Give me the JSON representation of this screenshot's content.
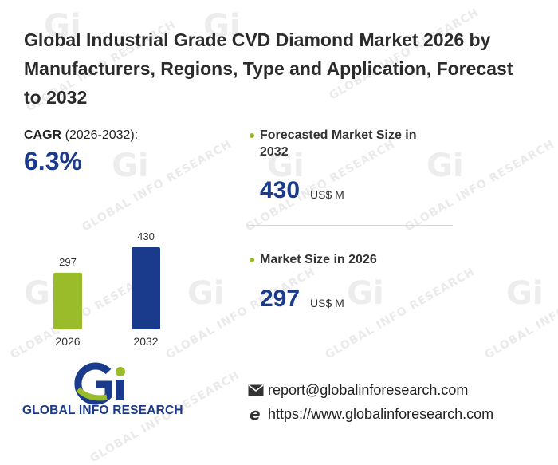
{
  "title": "Global Industrial Grade CVD Diamond Market 2026 by Manufacturers, Regions, Type and Application, Forecast to 2032",
  "cagr": {
    "label": "CAGR",
    "period": "(2026-2032):",
    "value": "6.3%"
  },
  "kpis": {
    "forecast": {
      "label_line1": "Forecasted Market Size in",
      "label_line2": "2032",
      "value": "430",
      "unit": "US$ M"
    },
    "current": {
      "label": "Market Size in 2026",
      "value": "297",
      "unit": "US$ M"
    }
  },
  "chart_data": {
    "type": "bar",
    "categories": [
      "2026",
      "2032"
    ],
    "values": [
      297,
      430
    ],
    "colors": [
      "#9bbc2a",
      "#1a3a8c"
    ],
    "ylim": [
      0,
      430
    ]
  },
  "brand": {
    "name": "GLOBAL INFO RESEARCH",
    "logo_mark": "Gi",
    "watermark_text": "GLOBAL INFO RESEARCH"
  },
  "contact": {
    "email": "report@globalinforesearch.com",
    "website": "https://www.globalinforesearch.com",
    "email_icon": "envelope-icon",
    "web_icon": "browser-e-icon"
  },
  "colors": {
    "accent_green": "#9bbc2a",
    "accent_navy": "#1a3a8c"
  }
}
